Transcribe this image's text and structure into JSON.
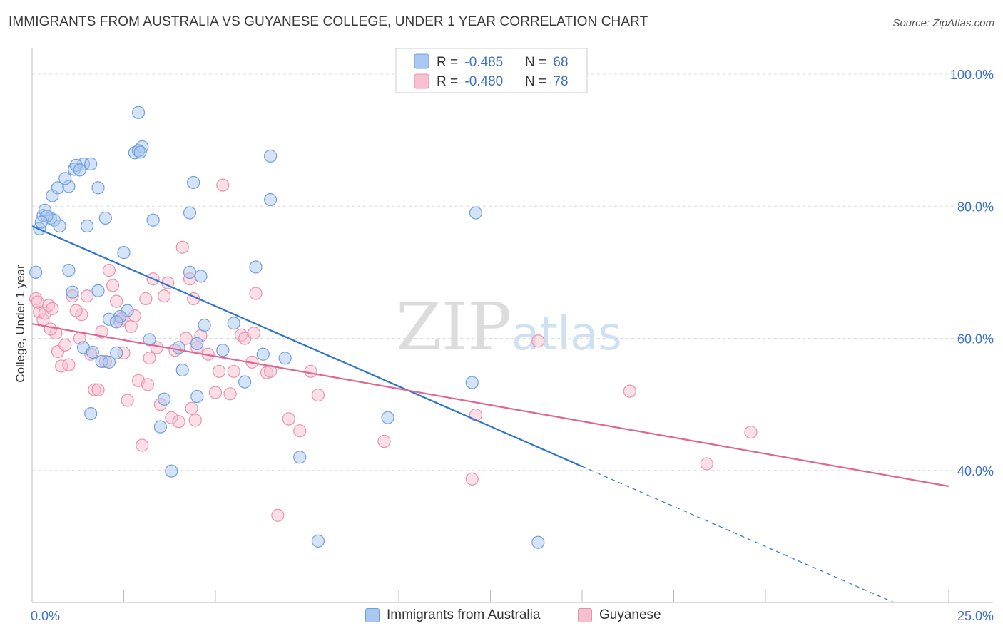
{
  "header": {
    "title": "IMMIGRANTS FROM AUSTRALIA VS GUYANESE COLLEGE, UNDER 1 YEAR CORRELATION CHART",
    "source": "Source: ZipAtlas.com"
  },
  "watermark": {
    "zip": "ZIP",
    "atlas": "atlas"
  },
  "legend_top": {
    "rows": [
      {
        "r_label": "R = ",
        "r_value": "-0.485",
        "n_label": "N = ",
        "n_value": "68"
      },
      {
        "r_label": "R = ",
        "r_value": "-0.480",
        "n_label": "N = ",
        "n_value": "78"
      }
    ]
  },
  "legend_bottom": {
    "items": [
      {
        "label": "Immigrants from Australia"
      },
      {
        "label": "Guyanese"
      }
    ]
  },
  "colors": {
    "blue_fill": "#a9c8f0",
    "blue_stroke": "#6f9fdc",
    "blue_line": "#2c73d2",
    "pink_fill": "#f7c0d0",
    "pink_stroke": "#e892ad",
    "pink_line": "#e06592",
    "tick_text": "#3b73c8",
    "grid": "#dddddd"
  },
  "chart_data": {
    "type": "scatter",
    "title": "IMMIGRANTS FROM AUSTRALIA VS GUYANESE COLLEGE, UNDER 1 YEAR CORRELATION CHART",
    "xlabel": "",
    "ylabel": "College, Under 1 year",
    "xlim": [
      0,
      25
    ],
    "ylim": [
      20,
      104
    ],
    "x_tick_labels": [
      "0.0%",
      "25.0%"
    ],
    "y_ticks": [
      40,
      60,
      80,
      100
    ],
    "y_tick_labels": [
      "40.0%",
      "60.0%",
      "80.0%",
      "100.0%"
    ],
    "grid": true,
    "legend_position": "top-center",
    "series": [
      {
        "name": "Immigrants from Australia",
        "r": -0.485,
        "n": 68,
        "trend": {
          "x0": 0.0,
          "y0": 77.0,
          "x1": 15.0,
          "y1": 40.6,
          "dash_to_x": 23.5,
          "dash_to_y": 20.0
        },
        "points": [
          [
            0.1,
            70.0
          ],
          [
            0.2,
            76.6
          ],
          [
            0.3,
            78.6
          ],
          [
            0.35,
            79.4
          ],
          [
            0.5,
            78.2
          ],
          [
            0.55,
            81.6
          ],
          [
            0.6,
            77.9
          ],
          [
            0.7,
            82.8
          ],
          [
            0.75,
            77.0
          ],
          [
            1.0,
            83.0
          ],
          [
            0.9,
            84.2
          ],
          [
            1.15,
            85.6
          ],
          [
            1.4,
            86.4
          ],
          [
            1.2,
            86.2
          ],
          [
            1.8,
            82.8
          ],
          [
            1.6,
            86.4
          ],
          [
            2.9,
            94.2
          ],
          [
            2.8,
            88.1
          ],
          [
            3.0,
            89.0
          ],
          [
            2.9,
            88.4
          ],
          [
            2.0,
            78.2
          ],
          [
            2.5,
            73.0
          ],
          [
            1.5,
            77.0
          ],
          [
            3.3,
            77.9
          ],
          [
            4.3,
            79.0
          ],
          [
            4.4,
            83.6
          ],
          [
            6.5,
            87.6
          ],
          [
            6.5,
            81.0
          ],
          [
            6.1,
            70.8
          ],
          [
            4.3,
            70.0
          ],
          [
            4.6,
            69.4
          ],
          [
            1.0,
            70.3
          ],
          [
            1.1,
            67.0
          ],
          [
            1.8,
            67.2
          ],
          [
            2.6,
            64.2
          ],
          [
            2.4,
            63.3
          ],
          [
            2.1,
            62.9
          ],
          [
            2.3,
            62.5
          ],
          [
            3.2,
            59.8
          ],
          [
            4.7,
            62.0
          ],
          [
            5.5,
            62.3
          ],
          [
            2.3,
            57.8
          ],
          [
            1.9,
            56.5
          ],
          [
            2.1,
            56.4
          ],
          [
            1.4,
            58.6
          ],
          [
            4.0,
            58.6
          ],
          [
            5.2,
            58.2
          ],
          [
            6.3,
            57.6
          ],
          [
            6.9,
            57.0
          ],
          [
            4.1,
            55.2
          ],
          [
            5.8,
            53.4
          ],
          [
            4.5,
            51.2
          ],
          [
            3.6,
            50.8
          ],
          [
            1.6,
            48.6
          ],
          [
            3.5,
            46.6
          ],
          [
            9.7,
            48.0
          ],
          [
            7.3,
            42.0
          ],
          [
            3.8,
            39.9
          ],
          [
            12.0,
            53.3
          ],
          [
            12.1,
            79.0
          ],
          [
            7.8,
            29.3
          ],
          [
            13.8,
            29.1
          ],
          [
            0.4,
            78.5
          ],
          [
            0.25,
            77.6
          ],
          [
            1.3,
            85.5
          ],
          [
            2.95,
            88.2
          ],
          [
            4.5,
            59.2
          ],
          [
            1.65,
            57.9
          ]
        ]
      },
      {
        "name": "Guyanese",
        "r": -0.48,
        "n": 78,
        "trend": {
          "x0": 0.0,
          "y0": 62.2,
          "x1": 25.0,
          "y1": 37.6
        },
        "points": [
          [
            0.1,
            66.0
          ],
          [
            0.2,
            64.0
          ],
          [
            0.3,
            62.8
          ],
          [
            0.35,
            63.8
          ],
          [
            0.45,
            65.0
          ],
          [
            0.55,
            64.5
          ],
          [
            0.65,
            60.8
          ],
          [
            0.7,
            58.0
          ],
          [
            0.8,
            55.8
          ],
          [
            0.9,
            59.0
          ],
          [
            1.0,
            56.0
          ],
          [
            1.1,
            66.4
          ],
          [
            1.3,
            60.0
          ],
          [
            1.35,
            63.6
          ],
          [
            1.5,
            66.4
          ],
          [
            1.6,
            57.6
          ],
          [
            1.7,
            52.2
          ],
          [
            1.8,
            52.2
          ],
          [
            1.9,
            61.0
          ],
          [
            2.0,
            56.5
          ],
          [
            2.1,
            70.3
          ],
          [
            2.2,
            68.0
          ],
          [
            2.3,
            65.6
          ],
          [
            2.4,
            62.6
          ],
          [
            2.5,
            57.8
          ],
          [
            2.6,
            50.6
          ],
          [
            2.7,
            61.8
          ],
          [
            2.8,
            63.4
          ],
          [
            2.9,
            53.6
          ],
          [
            3.0,
            43.8
          ],
          [
            3.1,
            66.0
          ],
          [
            3.2,
            57.0
          ],
          [
            3.3,
            69.0
          ],
          [
            3.4,
            58.6
          ],
          [
            3.5,
            50.0
          ],
          [
            3.6,
            66.4
          ],
          [
            3.7,
            68.4
          ],
          [
            3.8,
            48.0
          ],
          [
            3.9,
            58.2
          ],
          [
            4.0,
            47.4
          ],
          [
            4.1,
            73.8
          ],
          [
            4.2,
            60.0
          ],
          [
            4.3,
            69.0
          ],
          [
            4.35,
            49.4
          ],
          [
            4.4,
            66.0
          ],
          [
            4.5,
            58.6
          ],
          [
            4.6,
            60.4
          ],
          [
            4.8,
            57.6
          ],
          [
            5.0,
            51.8
          ],
          [
            5.1,
            55.0
          ],
          [
            5.2,
            83.2
          ],
          [
            5.4,
            51.6
          ],
          [
            5.5,
            55.0
          ],
          [
            5.7,
            60.5
          ],
          [
            5.8,
            60.0
          ],
          [
            6.0,
            56.4
          ],
          [
            6.1,
            66.8
          ],
          [
            6.4,
            54.8
          ],
          [
            6.5,
            55.0
          ],
          [
            6.7,
            33.2
          ],
          [
            7.0,
            47.8
          ],
          [
            7.3,
            46.0
          ],
          [
            7.6,
            55.0
          ],
          [
            7.8,
            51.4
          ],
          [
            9.6,
            44.4
          ],
          [
            12.0,
            38.7
          ],
          [
            12.1,
            48.4
          ],
          [
            13.8,
            59.6
          ],
          [
            16.3,
            52.0
          ],
          [
            18.4,
            41.0
          ],
          [
            19.6,
            45.8
          ],
          [
            0.15,
            65.5
          ],
          [
            0.5,
            61.4
          ],
          [
            1.2,
            64.2
          ],
          [
            2.45,
            63.0
          ],
          [
            3.15,
            53.0
          ],
          [
            4.45,
            47.6
          ],
          [
            6.05,
            60.8
          ]
        ]
      }
    ]
  }
}
